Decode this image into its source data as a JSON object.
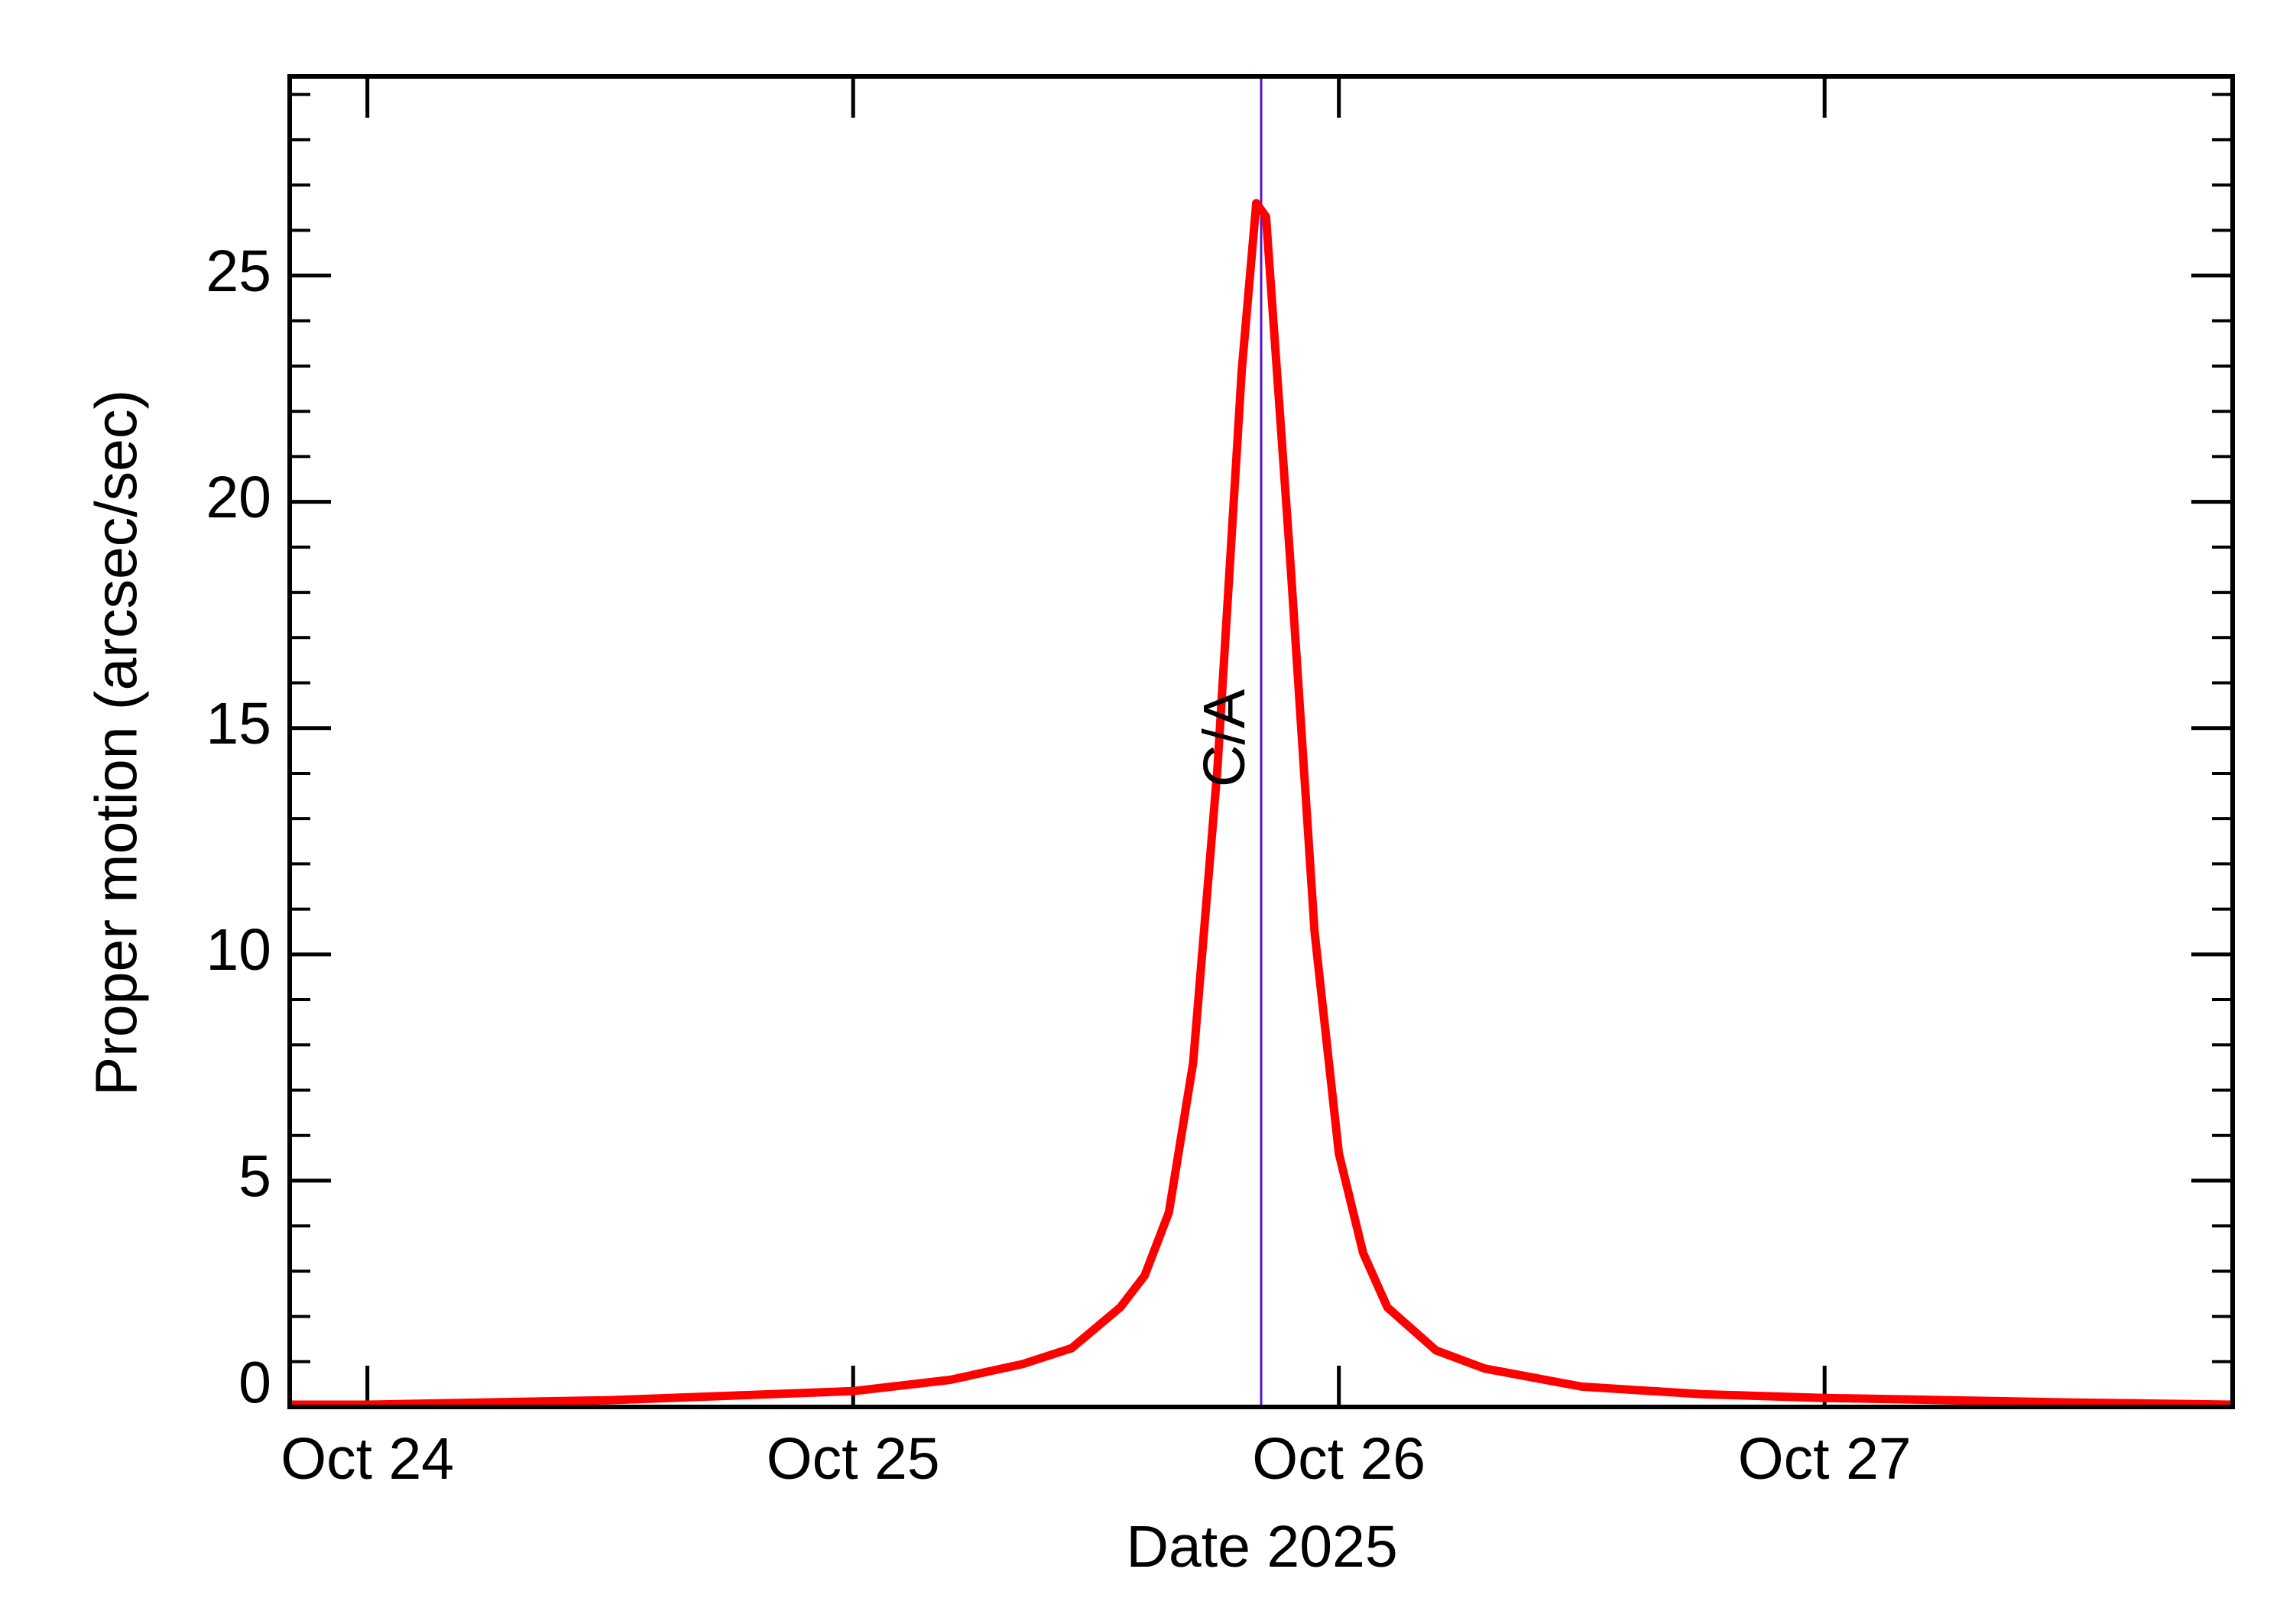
{
  "chart_data": {
    "type": "line",
    "x_label": "Date 2025",
    "y_label": "Proper motion (arcsec/sec)",
    "x": [
      -0.16,
      0,
      0.5,
      1.0,
      1.2,
      1.35,
      1.45,
      1.55,
      1.6,
      1.65,
      1.7,
      1.75,
      1.8,
      1.83,
      1.85,
      1.9,
      1.95,
      2.0,
      2.05,
      2.1,
      2.2,
      2.3,
      2.5,
      2.75,
      3.0,
      3.5,
      3.84
    ],
    "values": [
      0.05,
      0.05,
      0.15,
      0.35,
      0.6,
      0.95,
      1.3,
      2.2,
      2.9,
      4.3,
      7.6,
      14.1,
      22.9,
      26.6,
      26.3,
      18.7,
      10.5,
      5.6,
      3.4,
      2.2,
      1.25,
      0.85,
      0.45,
      0.28,
      0.2,
      0.1,
      0.05
    ],
    "color": "#ff0000",
    "xlim": [
      -0.16,
      3.84
    ],
    "xticks": [
      {
        "value": 0,
        "label": "Oct 24"
      },
      {
        "value": 1,
        "label": "Oct 25"
      },
      {
        "value": 2,
        "label": "Oct 26"
      },
      {
        "value": 3,
        "label": "Oct 27"
      }
    ],
    "ylim": [
      0,
      29.4
    ],
    "yticks": [
      0,
      5,
      10,
      15,
      20,
      25
    ],
    "annotation": {
      "text": "C/A",
      "x": 1.84,
      "color": "#5a14d2"
    }
  }
}
